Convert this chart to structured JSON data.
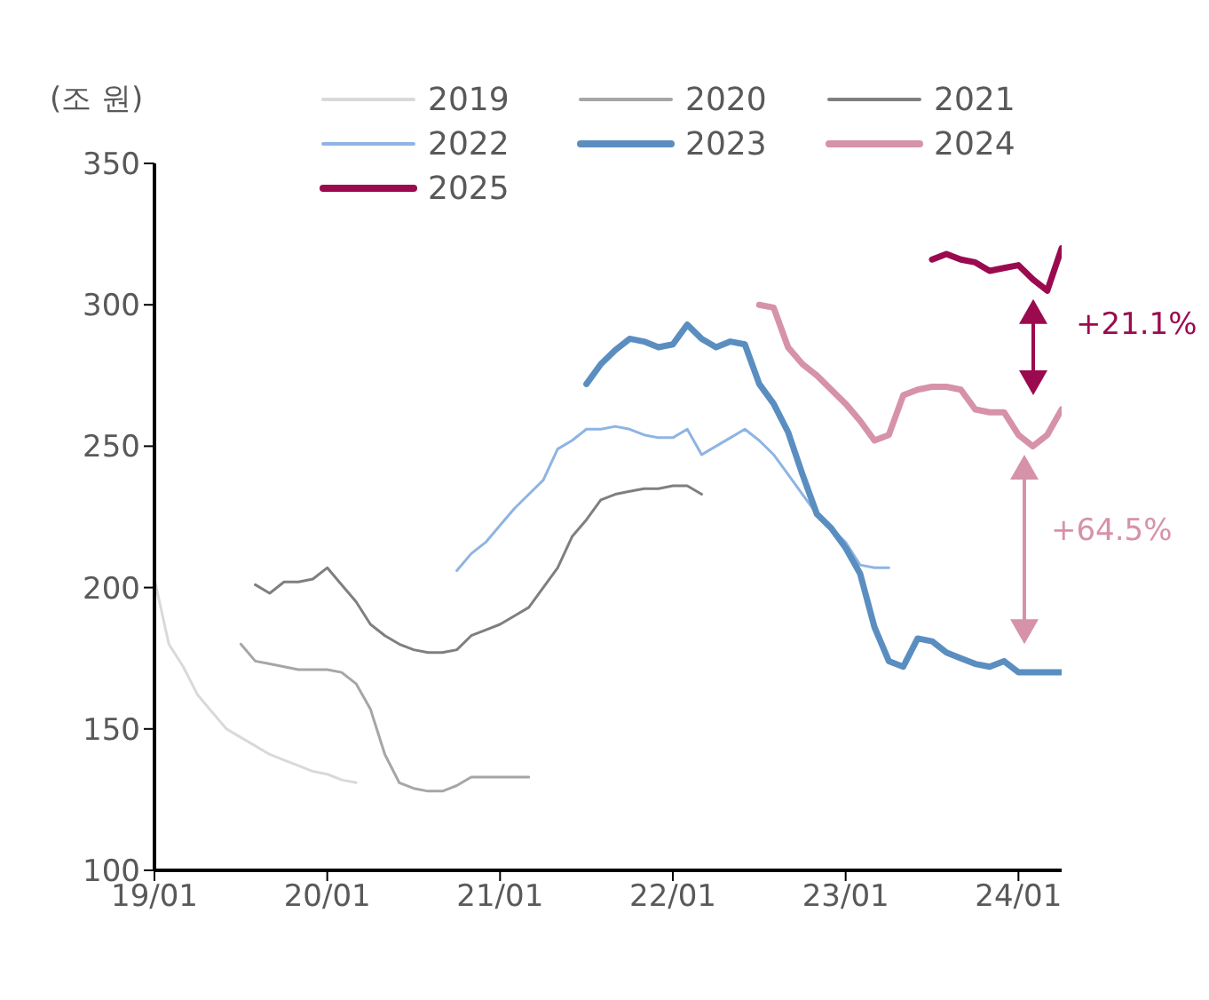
{
  "chart_data": {
    "type": "line",
    "ylabel": "(조 원)",
    "xlim": [
      "2019-01",
      "2024-04"
    ],
    "xticks": [
      {
        "value": "2019-01",
        "label": "19/01"
      },
      {
        "value": "2020-01",
        "label": "20/01"
      },
      {
        "value": "2021-01",
        "label": "21/01"
      },
      {
        "value": "2022-01",
        "label": "22/01"
      },
      {
        "value": "2023-01",
        "label": "23/01"
      },
      {
        "value": "2024-01",
        "label": "24/01"
      }
    ],
    "ylim": [
      100,
      350
    ],
    "yticks": [
      100,
      150,
      200,
      250,
      300,
      350
    ],
    "grid": false,
    "legend": "top",
    "marker": "none",
    "line_style": "solid",
    "annotations": [
      "+21.1%",
      "+64.5%"
    ],
    "series": [
      {
        "name": "2019",
        "color": "#d9d9d9",
        "x": [
          "2019-01",
          "2019-02",
          "2019-03",
          "2019-04",
          "2019-05",
          "2019-06",
          "2019-07",
          "2019-08",
          "2019-09",
          "2019-10",
          "2019-11",
          "2019-12",
          "2020-01",
          "2020-02",
          "2020-03"
        ],
        "values": [
          203,
          180,
          172,
          162,
          156,
          150,
          147,
          144,
          141,
          139,
          137,
          135,
          134,
          132,
          131
        ]
      },
      {
        "name": "2020",
        "color": "#a6a6a6",
        "x": [
          "2019-07",
          "2019-08",
          "2019-09",
          "2019-10",
          "2019-11",
          "2019-12",
          "2020-01",
          "2020-02",
          "2020-03",
          "2020-04",
          "2020-05",
          "2020-06",
          "2020-07",
          "2020-08",
          "2020-09",
          "2020-10",
          "2020-11",
          "2020-12",
          "2021-01",
          "2021-02",
          "2021-03"
        ],
        "values": [
          180,
          174,
          173,
          172,
          171,
          171,
          171,
          170,
          166,
          157,
          141,
          131,
          129,
          128,
          128,
          130,
          133,
          133,
          133,
          133,
          133
        ]
      },
      {
        "name": "2021",
        "color": "#7f7f7f",
        "x": [
          "2019-08",
          "2019-09",
          "2019-10",
          "2019-11",
          "2019-12",
          "2020-01",
          "2020-02",
          "2020-03",
          "2020-04",
          "2020-05",
          "2020-06",
          "2020-07",
          "2020-08",
          "2020-09",
          "2020-10",
          "2020-11",
          "2020-12",
          "2021-01",
          "2021-02",
          "2021-03",
          "2021-04",
          "2021-05",
          "2021-06",
          "2021-07",
          "2021-08",
          "2021-09",
          "2021-10",
          "2021-11",
          "2021-12",
          "2022-01",
          "2022-02",
          "2022-03"
        ],
        "values": [
          201,
          198,
          202,
          202,
          203,
          207,
          201,
          195,
          187,
          183,
          180,
          178,
          177,
          177,
          178,
          183,
          185,
          187,
          190,
          193,
          200,
          207,
          218,
          224,
          231,
          233,
          234,
          235,
          235,
          236,
          236,
          233
        ]
      },
      {
        "name": "2022",
        "color": "#8eb4e3",
        "x": [
          "2020-10",
          "2020-11",
          "2020-12",
          "2021-01",
          "2021-02",
          "2021-03",
          "2021-04",
          "2021-05",
          "2021-06",
          "2021-07",
          "2021-08",
          "2021-09",
          "2021-10",
          "2021-11",
          "2021-12",
          "2022-01",
          "2022-02",
          "2022-03",
          "2022-04",
          "2022-05",
          "2022-06",
          "2022-07",
          "2022-08",
          "2022-09",
          "2022-10",
          "2022-11",
          "2022-12",
          "2023-01",
          "2023-02",
          "2023-03",
          "2023-04"
        ],
        "values": [
          206,
          212,
          216,
          222,
          228,
          233,
          238,
          249,
          252,
          256,
          256,
          257,
          256,
          254,
          253,
          253,
          256,
          247,
          250,
          253,
          256,
          252,
          247,
          240,
          233,
          226,
          221,
          216,
          208,
          207,
          207
        ]
      },
      {
        "name": "2023",
        "color": "#5b8ec0",
        "x": [
          "2021-07",
          "2021-08",
          "2021-09",
          "2021-10",
          "2021-11",
          "2021-12",
          "2022-01",
          "2022-02",
          "2022-03",
          "2022-04",
          "2022-05",
          "2022-06",
          "2022-07",
          "2022-08",
          "2022-09",
          "2022-10",
          "2022-11",
          "2022-12",
          "2023-01",
          "2023-02",
          "2023-03",
          "2023-04",
          "2023-05",
          "2023-06",
          "2023-07",
          "2023-08",
          "2023-09",
          "2023-10",
          "2023-11",
          "2023-12",
          "2024-01",
          "2024-02",
          "2024-03",
          "2024-04"
        ],
        "values": [
          272,
          279,
          284,
          288,
          287,
          285,
          286,
          293,
          288,
          285,
          287,
          286,
          272,
          265,
          255,
          240,
          226,
          221,
          214,
          205,
          186,
          174,
          172,
          182,
          181,
          177,
          175,
          173,
          172,
          174,
          170,
          170,
          170,
          170
        ]
      },
      {
        "name": "2024",
        "color": "#d692a8",
        "x": [
          "2022-07",
          "2022-08",
          "2022-09",
          "2022-10",
          "2022-11",
          "2022-12",
          "2023-01",
          "2023-02",
          "2023-03",
          "2023-04",
          "2023-05",
          "2023-06",
          "2023-07",
          "2023-08",
          "2023-09",
          "2023-10",
          "2023-11",
          "2023-12",
          "2024-01",
          "2024-02",
          "2024-03",
          "2024-04"
        ],
        "values": [
          300,
          299,
          285,
          279,
          275,
          270,
          265,
          259,
          252,
          254,
          268,
          270,
          271,
          271,
          270,
          263,
          262,
          262,
          254,
          250,
          254,
          263
        ]
      },
      {
        "name": "2025",
        "color": "#9b0a4f",
        "x": [
          "2023-07",
          "2023-08",
          "2023-09",
          "2023-10",
          "2023-11",
          "2023-12",
          "2024-01",
          "2024-02",
          "2024-03",
          "2024-04"
        ],
        "values": [
          316,
          318,
          316,
          315,
          312,
          313,
          314,
          309,
          305,
          320
        ]
      }
    ]
  }
}
